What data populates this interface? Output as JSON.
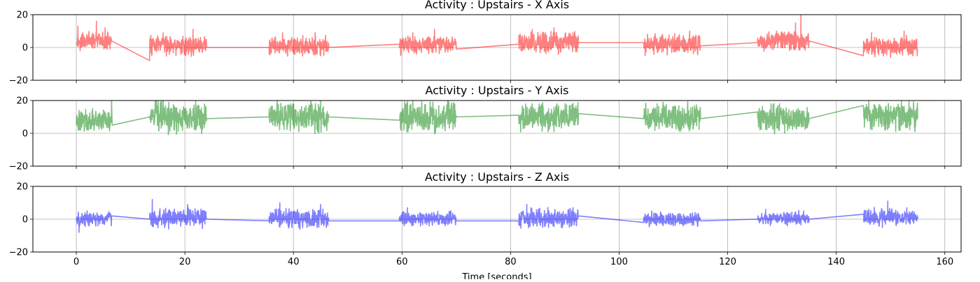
{
  "chart_data": [
    {
      "type": "line",
      "title": "Activity : Upstairs - X Axis",
      "xlim": [
        -8,
        163
      ],
      "ylim": [
        -20,
        20
      ],
      "xticks": [
        0,
        20,
        40,
        60,
        80,
        100,
        120,
        140,
        160
      ],
      "yticks": [
        -20,
        0,
        20
      ],
      "show_xtick_labels": false,
      "xlabel": "",
      "grid": true,
      "color": "#ff0000",
      "bursts": [
        {
          "start": 0.0,
          "end": 6.5,
          "mean": 4,
          "amp": 6
        },
        {
          "start": 13.5,
          "end": 24.0,
          "mean": 1,
          "amp": 7
        },
        {
          "start": 35.5,
          "end": 46.5,
          "mean": 0.5,
          "amp": 7
        },
        {
          "start": 59.5,
          "end": 70.0,
          "mean": 1.5,
          "amp": 7
        },
        {
          "start": 81.5,
          "end": 92.5,
          "mean": 3,
          "amp": 8
        },
        {
          "start": 104.5,
          "end": 115.0,
          "mean": 2,
          "amp": 7
        },
        {
          "start": 125.5,
          "end": 135.0,
          "mean": 4,
          "amp": 7
        },
        {
          "start": 145.0,
          "end": 155.0,
          "mean": 1,
          "amp": 7
        }
      ],
      "points": [
        [
          0.0,
          3
        ],
        [
          0.3,
          13
        ],
        [
          0.7,
          -2
        ],
        [
          1.2,
          9
        ],
        [
          2.0,
          7
        ],
        [
          3.0,
          4
        ],
        [
          3.7,
          16
        ],
        [
          4.5,
          2
        ],
        [
          5.3,
          12
        ],
        [
          6.2,
          -1
        ],
        [
          6.5,
          4
        ],
        [
          13.5,
          -8
        ],
        [
          13.8,
          5
        ],
        [
          16.0,
          9
        ],
        [
          18.5,
          -1
        ],
        [
          21.5,
          11
        ],
        [
          24.0,
          0
        ],
        [
          35.5,
          0
        ],
        [
          38.0,
          9
        ],
        [
          41.5,
          -3
        ],
        [
          44.0,
          9
        ],
        [
          46.5,
          0
        ],
        [
          59.5,
          2
        ],
        [
          62.0,
          9
        ],
        [
          66.0,
          11
        ],
        [
          69.0,
          -2
        ],
        [
          70.0,
          -1
        ],
        [
          81.5,
          2
        ],
        [
          84.0,
          11
        ],
        [
          88.0,
          12
        ],
        [
          91.5,
          9
        ],
        [
          92.5,
          3
        ],
        [
          104.5,
          3
        ],
        [
          104.8,
          -5
        ],
        [
          108.0,
          8
        ],
        [
          113.0,
          10
        ],
        [
          115.0,
          1
        ],
        [
          125.5,
          3
        ],
        [
          129.0,
          10
        ],
        [
          132.5,
          15
        ],
        [
          133.5,
          20
        ],
        [
          134.0,
          3
        ],
        [
          135.0,
          4
        ],
        [
          145.0,
          -5
        ],
        [
          146.5,
          9
        ],
        [
          150.0,
          -6
        ],
        [
          152.5,
          10
        ],
        [
          155.0,
          -1
        ]
      ]
    },
    {
      "type": "line",
      "title": "Activity : Upstairs - Y Axis",
      "xlim": [
        -8,
        163
      ],
      "ylim": [
        -20,
        20
      ],
      "xticks": [
        0,
        20,
        40,
        60,
        80,
        100,
        120,
        140,
        160
      ],
      "yticks": [
        -20,
        0,
        20
      ],
      "show_xtick_labels": false,
      "xlabel": "",
      "grid": true,
      "color": "#008000",
      "bursts": [
        {
          "start": 0.0,
          "end": 6.5,
          "mean": 8,
          "amp": 8
        },
        {
          "start": 13.5,
          "end": 24.0,
          "mean": 10,
          "amp": 11
        },
        {
          "start": 35.5,
          "end": 46.5,
          "mean": 10,
          "amp": 11
        },
        {
          "start": 59.5,
          "end": 70.0,
          "mean": 10,
          "amp": 11
        },
        {
          "start": 81.5,
          "end": 92.5,
          "mean": 10,
          "amp": 10
        },
        {
          "start": 104.5,
          "end": 115.0,
          "mean": 10,
          "amp": 10
        },
        {
          "start": 125.5,
          "end": 135.0,
          "mean": 9,
          "amp": 10
        },
        {
          "start": 145.0,
          "end": 155.0,
          "mean": 10,
          "amp": 10
        }
      ],
      "points": [
        [
          0.0,
          7
        ],
        [
          0.5,
          14
        ],
        [
          1.5,
          3
        ],
        [
          3.0,
          15
        ],
        [
          5.0,
          4
        ],
        [
          6.5,
          20
        ],
        [
          6.6,
          5
        ],
        [
          13.5,
          10
        ],
        [
          16.0,
          20
        ],
        [
          18.0,
          2
        ],
        [
          22.0,
          20
        ],
        [
          24.0,
          9
        ],
        [
          35.5,
          10
        ],
        [
          37.0,
          20
        ],
        [
          41.0,
          1
        ],
        [
          45.0,
          20
        ],
        [
          46.5,
          10
        ],
        [
          59.5,
          8
        ],
        [
          62.0,
          20
        ],
        [
          66.0,
          1
        ],
        [
          69.5,
          18
        ],
        [
          70.0,
          10
        ],
        [
          81.5,
          11
        ],
        [
          84.0,
          18
        ],
        [
          88.0,
          1
        ],
        [
          91.0,
          17
        ],
        [
          92.5,
          12
        ],
        [
          104.5,
          9
        ],
        [
          107.0,
          18
        ],
        [
          111.0,
          2
        ],
        [
          113.5,
          16
        ],
        [
          115.0,
          9
        ],
        [
          125.5,
          13
        ],
        [
          128.0,
          18
        ],
        [
          130.5,
          0
        ],
        [
          133.0,
          15
        ],
        [
          135.0,
          9
        ],
        [
          145.0,
          17
        ],
        [
          146.0,
          20
        ],
        [
          149.0,
          2
        ],
        [
          152.0,
          20
        ],
        [
          155.0,
          9
        ]
      ]
    },
    {
      "type": "line",
      "title": "Activity : Upstairs - Z Axis",
      "xlim": [
        -8,
        163
      ],
      "ylim": [
        -20,
        20
      ],
      "xticks": [
        0,
        20,
        40,
        60,
        80,
        100,
        120,
        140,
        160
      ],
      "yticks": [
        -20,
        0,
        20
      ],
      "show_xtick_labels": true,
      "xlabel": "Time [seconds]",
      "grid": true,
      "color": "#0000ff",
      "bursts": [
        {
          "start": 0.0,
          "end": 6.5,
          "mean": 0,
          "amp": 5
        },
        {
          "start": 13.5,
          "end": 24.0,
          "mean": 0.5,
          "amp": 7
        },
        {
          "start": 35.5,
          "end": 46.5,
          "mean": 0.5,
          "amp": 7
        },
        {
          "start": 59.5,
          "end": 70.0,
          "mean": 0.5,
          "amp": 5
        },
        {
          "start": 81.5,
          "end": 92.5,
          "mean": 0.5,
          "amp": 7
        },
        {
          "start": 104.5,
          "end": 115.0,
          "mean": 0,
          "amp": 5
        },
        {
          "start": 125.5,
          "end": 135.0,
          "mean": 0.5,
          "amp": 5
        },
        {
          "start": 145.0,
          "end": 155.0,
          "mean": 1.5,
          "amp": 6
        }
      ],
      "points": [
        [
          0.0,
          -1
        ],
        [
          0.5,
          -8
        ],
        [
          2.0,
          5
        ],
        [
          4.0,
          -4
        ],
        [
          6.5,
          2
        ],
        [
          13.5,
          0
        ],
        [
          14.0,
          12
        ],
        [
          17.0,
          -6
        ],
        [
          20.5,
          9
        ],
        [
          24.0,
          0
        ],
        [
          35.5,
          -1
        ],
        [
          37.5,
          10
        ],
        [
          41.0,
          -5
        ],
        [
          45.0,
          9
        ],
        [
          46.5,
          -1
        ],
        [
          59.5,
          -1
        ],
        [
          61.0,
          7
        ],
        [
          65.0,
          -4
        ],
        [
          69.0,
          5
        ],
        [
          70.0,
          -1
        ],
        [
          81.5,
          -1
        ],
        [
          83.0,
          9
        ],
        [
          87.0,
          -5
        ],
        [
          91.5,
          7
        ],
        [
          92.5,
          2
        ],
        [
          104.5,
          -2
        ],
        [
          106.0,
          5
        ],
        [
          110.0,
          -4
        ],
        [
          114.0,
          4
        ],
        [
          115.0,
          -1
        ],
        [
          125.5,
          0
        ],
        [
          127.0,
          6
        ],
        [
          131.0,
          -4
        ],
        [
          134.0,
          5
        ],
        [
          135.0,
          0
        ],
        [
          145.0,
          3
        ],
        [
          146.0,
          6
        ],
        [
          148.5,
          -5
        ],
        [
          149.5,
          11
        ],
        [
          153.0,
          7
        ],
        [
          155.0,
          0
        ]
      ]
    }
  ]
}
